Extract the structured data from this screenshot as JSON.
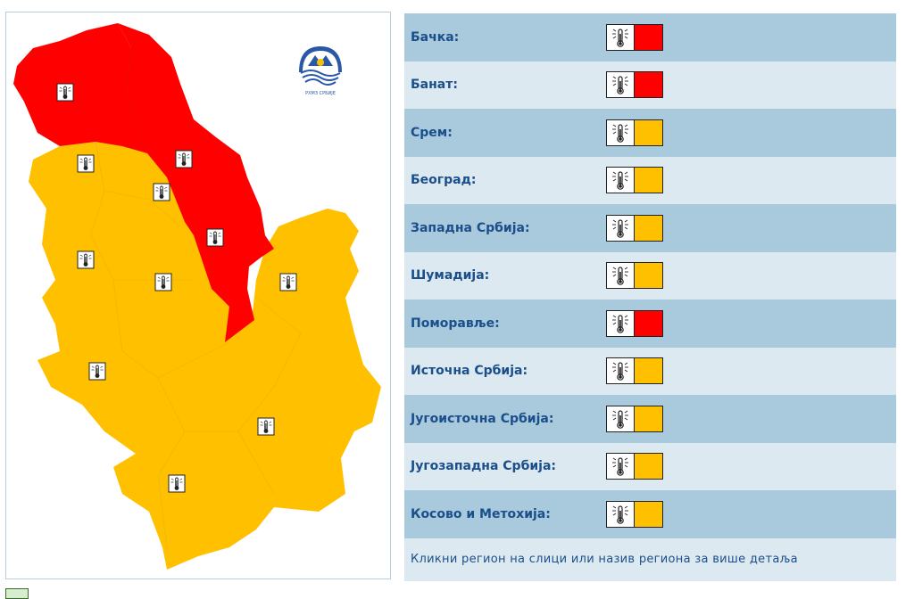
{
  "colors": {
    "red": "#ff0000",
    "orange": "#ffc000",
    "row_dark": "#a9c9dc",
    "row_light": "#dde9f1",
    "label_text": "#1a4f8b"
  },
  "map": {
    "logo_icon": "rhmz-logo-icon",
    "region_icon": "thermometer-icon",
    "logo_text": "РХМЗ СРБИЈЕ"
  },
  "regions": [
    {
      "label": "Бачка:",
      "level": "red"
    },
    {
      "label": "Банат:",
      "level": "red"
    },
    {
      "label": "Срем:",
      "level": "orange"
    },
    {
      "label": "Београд:",
      "level": "orange"
    },
    {
      "label": "Западна Србија:",
      "level": "orange"
    },
    {
      "label": "Шумадија:",
      "level": "orange"
    },
    {
      "label": "Поморавље:",
      "level": "red"
    },
    {
      "label": "Источна Србија:",
      "level": "orange"
    },
    {
      "label": "Југоисточна Србија:",
      "level": "orange"
    },
    {
      "label": "Југозападна Србија:",
      "level": "orange"
    },
    {
      "label": "Косово и Метохија:",
      "level": "orange"
    }
  ],
  "footer_text": "Кликни регион на слици или назив региона за више детаља"
}
